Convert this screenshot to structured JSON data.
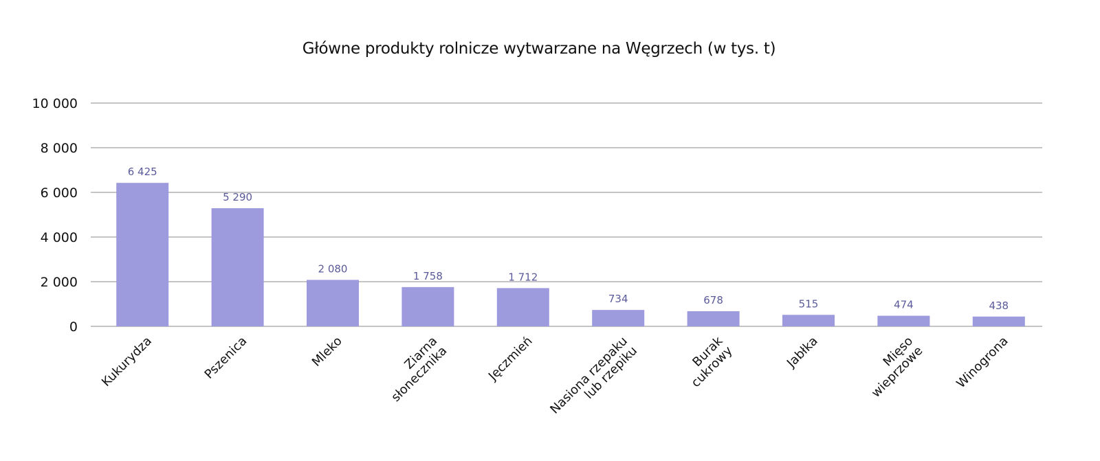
{
  "chart_data": {
    "type": "bar",
    "title": "Główne produkty rolnicze wytwarzane na Węgrzech (w tys. t)",
    "xlabel": "",
    "ylabel": "",
    "ylim": [
      0,
      10000
    ],
    "yticks": [
      0,
      2000,
      4000,
      6000,
      8000,
      10000
    ],
    "ytick_labels": [
      "0",
      "2 000",
      "4 000",
      "6 000",
      "8 000",
      "10 000"
    ],
    "grid": true,
    "legend": null,
    "bar_color": "#9d9ade",
    "label_color": "#5a5a9a",
    "categories": [
      [
        "Kukurydza"
      ],
      [
        "Pszenica"
      ],
      [
        "Mleko"
      ],
      [
        "Ziarna",
        "słonecznika"
      ],
      [
        "Jęczmień"
      ],
      [
        "Nasiona rzepaku",
        "lub rzepiku"
      ],
      [
        "Burak",
        "cukrowy"
      ],
      [
        "Jabłka"
      ],
      [
        "Mięso",
        "wieprzowe"
      ],
      [
        "Winogrona"
      ]
    ],
    "values": [
      6425,
      5290,
      2080,
      1758,
      1712,
      734,
      678,
      515,
      474,
      438
    ],
    "value_labels": [
      "6 425",
      "5 290",
      "2 080",
      "1 758",
      "1 712",
      "734",
      "678",
      "515",
      "474",
      "438"
    ]
  }
}
